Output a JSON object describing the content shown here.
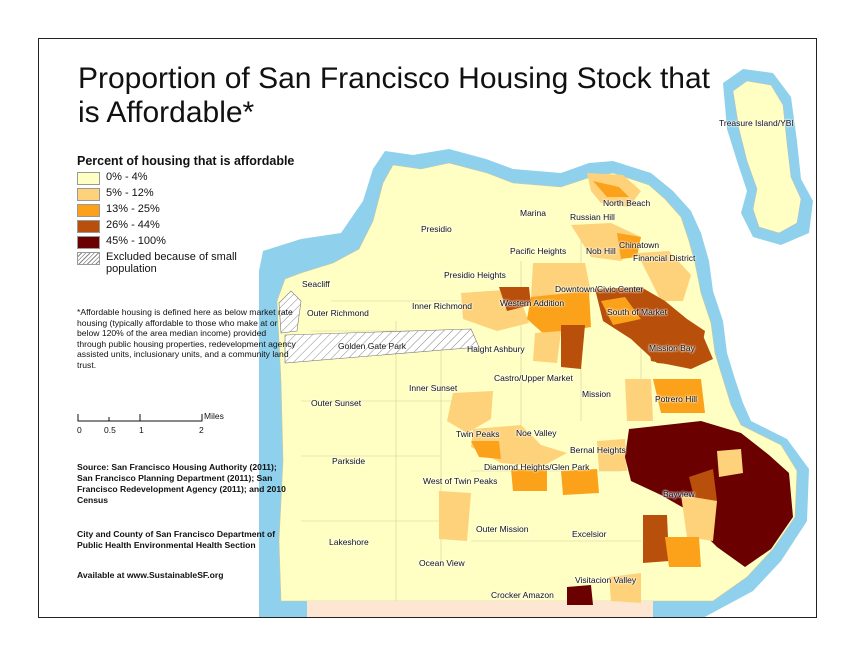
{
  "title": "Proportion of San Francisco Housing Stock that is Affordable*",
  "legend": {
    "title": "Percent of housing that is affordable",
    "items": [
      {
        "label": "0% - 4%",
        "color": "#ffffc4"
      },
      {
        "label": "5% - 12%",
        "color": "#fdd27a"
      },
      {
        "label": "13% - 25%",
        "color": "#fba21a"
      },
      {
        "label": "26% - 44%",
        "color": "#b84f0b"
      },
      {
        "label": "45% - 100%",
        "color": "#6b0000"
      }
    ],
    "excluded_label": "Excluded because of small population"
  },
  "note": "*Affordable housing is defined here as below market rate housing (typically affordable to those who make at or below 120% of the area median income) provided through public housing properties, redevelopment agency assisted units, inclusionary units, and a community land trust.",
  "scale_bar": {
    "unit": "Miles",
    "ticks": [
      "0",
      "0.5",
      "1",
      "2"
    ]
  },
  "source": "Source: San Francisco Housing Authority (2011); San Francisco Planning Department (2011); San Francisco Redevelopment Agency (2011); and 2010 Census",
  "department": "City and County of San Francisco Department of Public Health Environmental Health Section",
  "availability": "Available at www.SustainableSF.org",
  "colors": {
    "water": "#8fd1ec",
    "land_base": "#ffffc4",
    "excluded_hatch": "#888888",
    "south_strip": "#fde6d2"
  },
  "neighborhoods": {
    "treasure_island": "Treasure Island/YBI",
    "north_beach": "North Beach",
    "marina": "Marina",
    "russian_hill": "Russian Hill",
    "presidio": "Presidio",
    "chinatown": "Chinatown",
    "nob_hill": "Nob Hill",
    "pacific_heights": "Pacific Heights",
    "financial_district": "Financial District",
    "presidio_heights": "Presidio Heights",
    "seacliff": "Seacliff",
    "downtown": "Downtown/Civic Center",
    "western_addition": "Western Addition",
    "inner_richmond": "Inner Richmond",
    "outer_richmond": "Outer Richmond",
    "south_of_market": "South of Market",
    "golden_gate_park": "Golden Gate Park",
    "haight_ashbury": "Haight Ashbury",
    "mission_bay": "Mission Bay",
    "castro": "Castro/Upper Market",
    "inner_sunset": "Inner Sunset",
    "mission": "Mission",
    "outer_sunset": "Outer Sunset",
    "potrero_hill": "Potrero Hill",
    "twin_peaks": "Twin Peaks",
    "noe_valley": "Noe Valley",
    "bernal_heights": "Bernal Heights",
    "parkside": "Parkside",
    "diamond_heights": "Diamond Heights/Glen Park",
    "west_of_twin_peaks": "West of Twin Peaks",
    "bayview": "Bayview",
    "outer_mission": "Outer Mission",
    "excelsior": "Excelsior",
    "lakeshore": "Lakeshore",
    "ocean_view": "Ocean View",
    "visitacion_valley": "Visitacion Valley",
    "crocker_amazon": "Crocker Amazon"
  },
  "shading": {
    "north_beach": "13% - 25%",
    "chinatown": "13% - 25%",
    "western_addition": "26% - 44%",
    "south_of_market": "26% - 44%",
    "mission_bay": "26% - 44%",
    "potrero_hill": "13% - 25%",
    "bayview": "45% - 100%",
    "visitacion_valley": "45% - 100%",
    "golden_gate_park": "Excluded because of small population"
  }
}
